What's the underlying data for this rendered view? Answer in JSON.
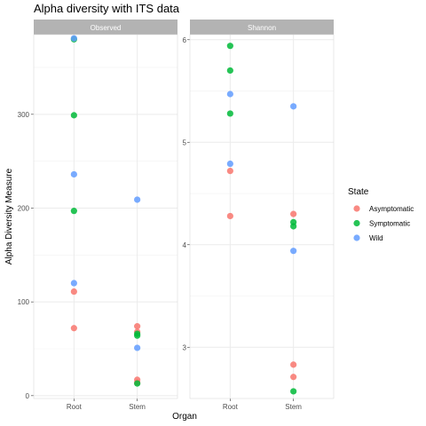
{
  "chart_data": {
    "type": "scatter",
    "title": "Alpha diversity with ITS data",
    "xlabel": "Organ",
    "ylabel": "Alpha Diversity Measure",
    "categories": [
      "Root",
      "Stem"
    ],
    "legend": {
      "title": "State",
      "position": "right",
      "entries": [
        {
          "name": "Asymptomatic",
          "color": "#F8766D"
        },
        {
          "name": "Symptomatic",
          "color": "#00BA38"
        },
        {
          "name": "Wild",
          "color": "#619CFF"
        }
      ]
    },
    "grid": true,
    "panels": [
      {
        "name": "Observed",
        "ylim": [
          -3,
          385
        ],
        "yticks": [
          0,
          100,
          200,
          300
        ],
        "tick_labels": [
          "0",
          "100",
          "200",
          "300"
        ],
        "series": [
          {
            "name": "Asymptomatic",
            "points": [
              {
                "x": "Root",
                "y": 72
              },
              {
                "x": "Root",
                "y": 111
              },
              {
                "x": "Stem",
                "y": 74
              },
              {
                "x": "Stem",
                "y": 68
              },
              {
                "x": "Stem",
                "y": 17
              },
              {
                "x": "Stem",
                "y": 14
              }
            ]
          },
          {
            "name": "Symptomatic",
            "points": [
              {
                "x": "Root",
                "y": 380
              },
              {
                "x": "Root",
                "y": 299
              },
              {
                "x": "Root",
                "y": 197
              },
              {
                "x": "Stem",
                "y": 66
              },
              {
                "x": "Stem",
                "y": 64
              },
              {
                "x": "Stem",
                "y": 13
              }
            ]
          },
          {
            "name": "Wild",
            "points": [
              {
                "x": "Root",
                "y": 381
              },
              {
                "x": "Root",
                "y": 236
              },
              {
                "x": "Root",
                "y": 120
              },
              {
                "x": "Stem",
                "y": 209
              },
              {
                "x": "Stem",
                "y": 51
              }
            ]
          }
        ]
      },
      {
        "name": "Shannon",
        "ylim": [
          2.5,
          6.05
        ],
        "yticks": [
          3,
          4,
          5,
          6
        ],
        "tick_labels": [
          "3",
          "4",
          "5",
          "6"
        ],
        "series": [
          {
            "name": "Asymptomatic",
            "points": [
              {
                "x": "Root",
                "y": 4.72
              },
              {
                "x": "Root",
                "y": 4.28
              },
              {
                "x": "Stem",
                "y": 4.3
              },
              {
                "x": "Stem",
                "y": 2.83
              },
              {
                "x": "Stem",
                "y": 2.71
              }
            ]
          },
          {
            "name": "Symptomatic",
            "points": [
              {
                "x": "Root",
                "y": 5.94
              },
              {
                "x": "Root",
                "y": 5.7
              },
              {
                "x": "Root",
                "y": 5.28
              },
              {
                "x": "Stem",
                "y": 4.22
              },
              {
                "x": "Stem",
                "y": 4.18
              },
              {
                "x": "Stem",
                "y": 2.57
              }
            ]
          },
          {
            "name": "Wild",
            "points": [
              {
                "x": "Root",
                "y": 5.47
              },
              {
                "x": "Root",
                "y": 4.79
              },
              {
                "x": "Stem",
                "y": 5.35
              },
              {
                "x": "Stem",
                "y": 3.94
              }
            ]
          }
        ]
      }
    ]
  }
}
